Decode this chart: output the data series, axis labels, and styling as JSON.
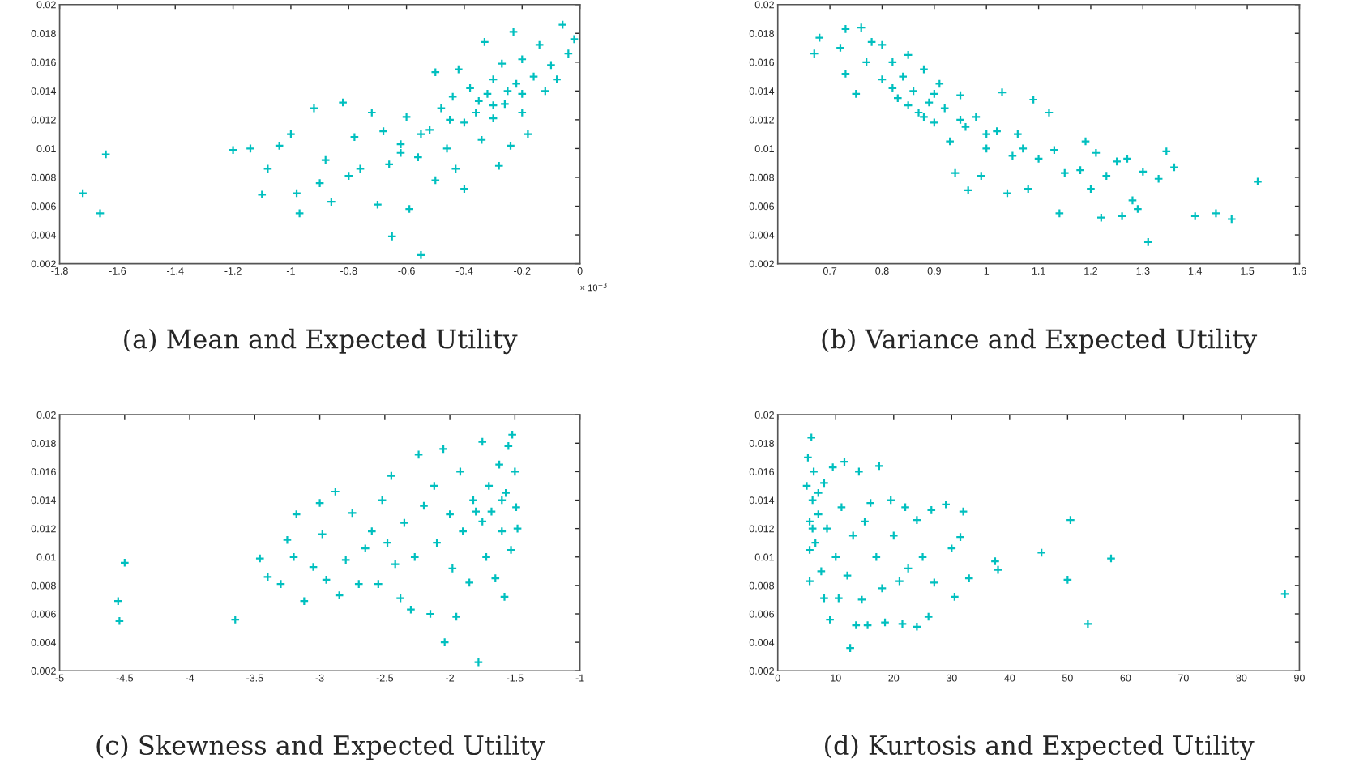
{
  "chart_data": [
    {
      "type": "scatter",
      "title": "(a) Mean and Expected Utility",
      "annotations": [
        "× 10$^{−3}$"
      ],
      "marker": "cross",
      "grid": false,
      "legend": false,
      "xlim": [
        -1.8,
        0
      ],
      "xticks": [
        -1.8,
        -1.6,
        -1.4,
        -1.2,
        -1,
        -0.8,
        -0.6,
        -0.4,
        -0.2,
        0
      ],
      "ylim": [
        0.002,
        0.02
      ],
      "yticks": [
        0.002,
        0.004,
        0.006,
        0.008,
        0.01,
        0.012,
        0.014,
        0.016,
        0.018,
        0.02
      ],
      "series": [
        {
          "color": "#00bfbf",
          "x": [
            -1.72,
            -1.66,
            -1.64,
            -1.2,
            -1.14,
            -1.1,
            -1.08,
            -1.04,
            -1.0,
            -0.98,
            -0.97,
            -0.92,
            -0.9,
            -0.88,
            -0.86,
            -0.82,
            -0.8,
            -0.78,
            -0.76,
            -0.72,
            -0.7,
            -0.68,
            -0.66,
            -0.65,
            -0.62,
            -0.6,
            -0.59,
            -0.56,
            -0.55,
            -0.52,
            -0.5,
            -0.5,
            -0.48,
            -0.46,
            -0.44,
            -0.43,
            -0.42,
            -0.4,
            -0.4,
            -0.38,
            -0.36,
            -0.34,
            -0.33,
            -0.32,
            -0.3,
            -0.3,
            -0.28,
            -0.27,
            -0.26,
            -0.24,
            -0.23,
            -0.22,
            -0.2,
            -0.2,
            -0.18,
            -0.16,
            -0.14,
            -0.12,
            -0.1,
            -0.08,
            -0.06,
            -0.04,
            -0.02,
            -0.35,
            -0.25,
            -0.45,
            -0.55,
            -0.62,
            -0.3,
            -0.2
          ],
          "values": [
            0.0069,
            0.0055,
            0.0096,
            0.0099,
            0.01,
            0.0068,
            0.0086,
            0.0102,
            0.011,
            0.0069,
            0.0055,
            0.0128,
            0.0076,
            0.0092,
            0.0063,
            0.0132,
            0.0081,
            0.0108,
            0.0086,
            0.0125,
            0.0061,
            0.0112,
            0.0089,
            0.0039,
            0.0103,
            0.0122,
            0.0058,
            0.0094,
            0.0026,
            0.0113,
            0.0153,
            0.0078,
            0.0128,
            0.01,
            0.0136,
            0.0086,
            0.0155,
            0.0072,
            0.0118,
            0.0142,
            0.0125,
            0.0106,
            0.0174,
            0.0138,
            0.0148,
            0.0121,
            0.0088,
            0.0159,
            0.0131,
            0.0102,
            0.0181,
            0.0145,
            0.0162,
            0.0125,
            0.011,
            0.015,
            0.0172,
            0.014,
            0.0158,
            0.0148,
            0.0186,
            0.0166,
            0.0176,
            0.0133,
            0.014,
            0.012,
            0.011,
            0.0097,
            0.013,
            0.0138
          ]
        }
      ]
    },
    {
      "type": "scatter",
      "title": "(b) Variance and Expected Utility",
      "marker": "cross",
      "grid": false,
      "legend": false,
      "xlim": [
        0.6,
        1.6
      ],
      "xticks": [
        0.7,
        0.8,
        0.9,
        1,
        1.1,
        1.2,
        1.3,
        1.4,
        1.5,
        1.6
      ],
      "ylim": [
        0.002,
        0.02
      ],
      "yticks": [
        0.002,
        0.004,
        0.006,
        0.008,
        0.01,
        0.012,
        0.014,
        0.016,
        0.018,
        0.02
      ],
      "series": [
        {
          "color": "#00bfbf",
          "x": [
            0.67,
            0.68,
            0.72,
            0.73,
            0.73,
            0.75,
            0.76,
            0.77,
            0.78,
            0.8,
            0.8,
            0.82,
            0.83,
            0.84,
            0.85,
            0.86,
            0.87,
            0.88,
            0.89,
            0.9,
            0.91,
            0.92,
            0.93,
            0.94,
            0.95,
            0.96,
            0.965,
            0.98,
            0.99,
            1.0,
            1.02,
            1.03,
            1.04,
            1.05,
            1.06,
            1.07,
            1.08,
            1.09,
            1.1,
            1.12,
            1.13,
            1.14,
            1.15,
            1.18,
            1.19,
            1.2,
            1.21,
            1.22,
            1.23,
            1.25,
            1.26,
            1.27,
            1.28,
            1.29,
            1.3,
            1.31,
            1.33,
            1.345,
            1.36,
            1.4,
            1.44,
            1.47,
            1.52,
            0.85,
            0.9,
            0.95,
            1.0,
            0.82,
            0.88
          ],
          "values": [
            0.0166,
            0.0177,
            0.017,
            0.0183,
            0.0152,
            0.0138,
            0.0184,
            0.016,
            0.0174,
            0.0172,
            0.0148,
            0.016,
            0.0135,
            0.015,
            0.0165,
            0.014,
            0.0125,
            0.0155,
            0.0132,
            0.0118,
            0.0145,
            0.0128,
            0.0105,
            0.0083,
            0.0137,
            0.0115,
            0.0071,
            0.0122,
            0.0081,
            0.01,
            0.0112,
            0.0139,
            0.0069,
            0.0095,
            0.011,
            0.01,
            0.0072,
            0.0134,
            0.0093,
            0.0125,
            0.0099,
            0.0055,
            0.0083,
            0.0085,
            0.0105,
            0.0072,
            0.0097,
            0.0052,
            0.0081,
            0.0091,
            0.0053,
            0.0093,
            0.0064,
            0.0058,
            0.0084,
            0.0035,
            0.0079,
            0.0098,
            0.0087,
            0.0053,
            0.0055,
            0.0051,
            0.0077,
            0.013,
            0.0138,
            0.012,
            0.011,
            0.0142,
            0.0122
          ]
        }
      ]
    },
    {
      "type": "scatter",
      "title": "(c) Skewness and Expected Utility",
      "marker": "cross",
      "grid": false,
      "legend": false,
      "xlim": [
        -5,
        -1
      ],
      "xticks": [
        -5,
        -4.5,
        -4,
        -3.5,
        -3,
        -2.5,
        -2,
        -1.5,
        -1
      ],
      "ylim": [
        0.002,
        0.02
      ],
      "yticks": [
        0.002,
        0.004,
        0.006,
        0.008,
        0.01,
        0.012,
        0.014,
        0.016,
        0.018,
        0.02
      ],
      "series": [
        {
          "color": "#00bfbf",
          "x": [
            -4.55,
            -4.54,
            -4.5,
            -3.65,
            -3.46,
            -3.4,
            -3.3,
            -3.25,
            -3.2,
            -3.18,
            -3.12,
            -3.05,
            -3.0,
            -2.98,
            -2.95,
            -2.88,
            -2.85,
            -2.8,
            -2.75,
            -2.7,
            -2.65,
            -2.6,
            -2.55,
            -2.52,
            -2.48,
            -2.45,
            -2.42,
            -2.38,
            -2.35,
            -2.3,
            -2.27,
            -2.24,
            -2.2,
            -2.15,
            -2.12,
            -2.1,
            -2.05,
            -2.04,
            -2.0,
            -1.98,
            -1.95,
            -1.92,
            -1.9,
            -1.85,
            -1.82,
            -1.78,
            -1.75,
            -1.75,
            -1.72,
            -1.7,
            -1.68,
            -1.65,
            -1.62,
            -1.6,
            -1.58,
            -1.57,
            -1.55,
            -1.53,
            -1.52,
            -1.5,
            -1.49,
            -1.48,
            -1.8,
            -1.6
          ],
          "values": [
            0.0069,
            0.0055,
            0.0096,
            0.0056,
            0.0099,
            0.0086,
            0.0081,
            0.0112,
            0.01,
            0.013,
            0.0069,
            0.0093,
            0.0138,
            0.0116,
            0.0084,
            0.0146,
            0.0073,
            0.0098,
            0.0131,
            0.0081,
            0.0106,
            0.0118,
            0.0081,
            0.014,
            0.011,
            0.0157,
            0.0095,
            0.0071,
            0.0124,
            0.0063,
            0.01,
            0.0172,
            0.0136,
            0.006,
            0.015,
            0.011,
            0.0176,
            0.004,
            0.013,
            0.0092,
            0.0058,
            0.016,
            0.0118,
            0.0082,
            0.014,
            0.0026,
            0.0181,
            0.0125,
            0.01,
            0.015,
            0.0132,
            0.0085,
            0.0165,
            0.0118,
            0.0072,
            0.0145,
            0.0178,
            0.0105,
            0.0186,
            0.016,
            0.0135,
            0.012,
            0.0132,
            0.014
          ]
        }
      ]
    },
    {
      "type": "scatter",
      "title": "(d) Kurtosis and Expected Utility",
      "marker": "cross",
      "grid": false,
      "legend": false,
      "xlim": [
        0,
        90
      ],
      "xticks": [
        0,
        10,
        20,
        30,
        40,
        50,
        60,
        70,
        80,
        90
      ],
      "ylim": [
        0.002,
        0.02
      ],
      "yticks": [
        0.002,
        0.004,
        0.006,
        0.008,
        0.01,
        0.012,
        0.014,
        0.016,
        0.018,
        0.02
      ],
      "series": [
        {
          "color": "#00bfbf",
          "x": [
            5,
            5.2,
            5.5,
            5.5,
            5.8,
            6,
            6.2,
            6.5,
            7,
            7.5,
            8,
            8,
            8.5,
            9,
            9.5,
            10,
            10.5,
            11,
            11.5,
            12,
            12.5,
            13,
            13.5,
            14,
            14.5,
            15,
            15.5,
            16,
            17,
            17.5,
            18,
            18.5,
            19.5,
            20,
            21,
            21.5,
            22,
            22.5,
            24,
            24,
            25,
            26,
            26.5,
            27,
            29,
            30,
            30.5,
            31.5,
            32,
            33,
            37.5,
            38,
            45.5,
            50,
            50.5,
            53.5,
            57.5,
            87.5,
            6,
            7,
            5.5
          ],
          "values": [
            0.015,
            0.017,
            0.0083,
            0.0125,
            0.0184,
            0.014,
            0.016,
            0.011,
            0.013,
            0.009,
            0.0152,
            0.0071,
            0.012,
            0.0056,
            0.0163,
            0.01,
            0.0071,
            0.0135,
            0.0167,
            0.0087,
            0.0036,
            0.0115,
            0.0052,
            0.016,
            0.007,
            0.0125,
            0.0052,
            0.0138,
            0.01,
            0.0164,
            0.0078,
            0.0054,
            0.014,
            0.0115,
            0.0083,
            0.0053,
            0.0135,
            0.0092,
            0.0126,
            0.0051,
            0.01,
            0.0058,
            0.0133,
            0.0082,
            0.0137,
            0.0106,
            0.0072,
            0.0114,
            0.0132,
            0.0085,
            0.0097,
            0.0091,
            0.0103,
            0.0084,
            0.0126,
            0.0053,
            0.0099,
            0.0074,
            0.012,
            0.0145,
            0.0105
          ]
        }
      ]
    }
  ]
}
